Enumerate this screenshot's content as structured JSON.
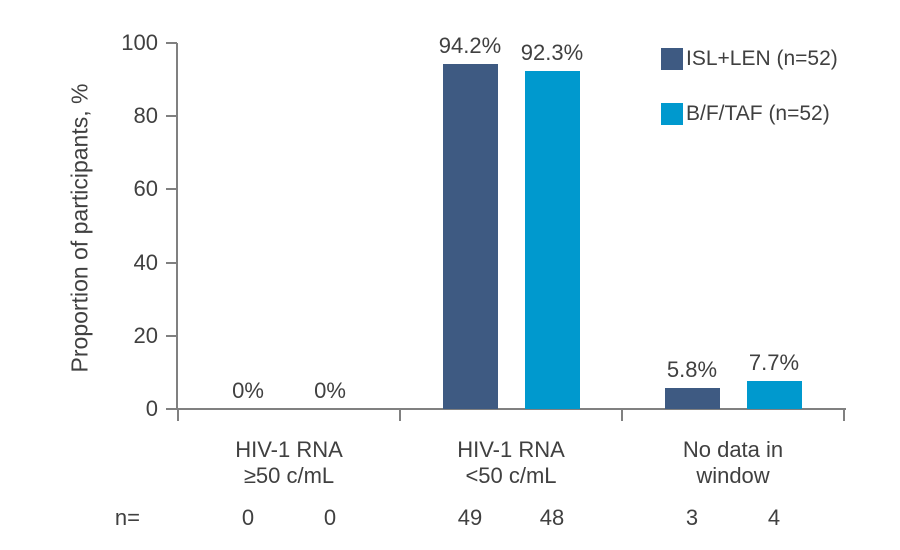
{
  "chart_data": {
    "type": "bar",
    "title": "",
    "xlabel": "",
    "ylabel": "Proportion of participants, %",
    "ylim": [
      0,
      100
    ],
    "y_ticks": [
      "0",
      "20",
      "40",
      "60",
      "80",
      "100"
    ],
    "grid": false,
    "legend_position": "top-right",
    "categories": [
      "HIV-1 RNA\n≥50 c/mL",
      "HIV-1 RNA\n<50 c/mL",
      "No data in\nwindow"
    ],
    "series": [
      {
        "name": "ISL+LEN (n=52)",
        "color": "#3E5A82",
        "values": [
          0,
          94.2,
          5.8
        ],
        "value_labels": [
          "0%",
          "94.2%",
          "5.8%"
        ],
        "n_values": [
          "0",
          "49",
          "3"
        ]
      },
      {
        "name": "B/F/TAF (n=52)",
        "color": "#0099CE",
        "values": [
          0,
          92.3,
          7.7
        ],
        "value_labels": [
          "0%",
          "92.3%",
          "7.7%"
        ],
        "n_values": [
          "0",
          "48",
          "4"
        ]
      }
    ],
    "n_row_prefix": "n="
  },
  "colors": {
    "text": "#404040",
    "axis": "#808080",
    "background": "#FFFFFF"
  }
}
